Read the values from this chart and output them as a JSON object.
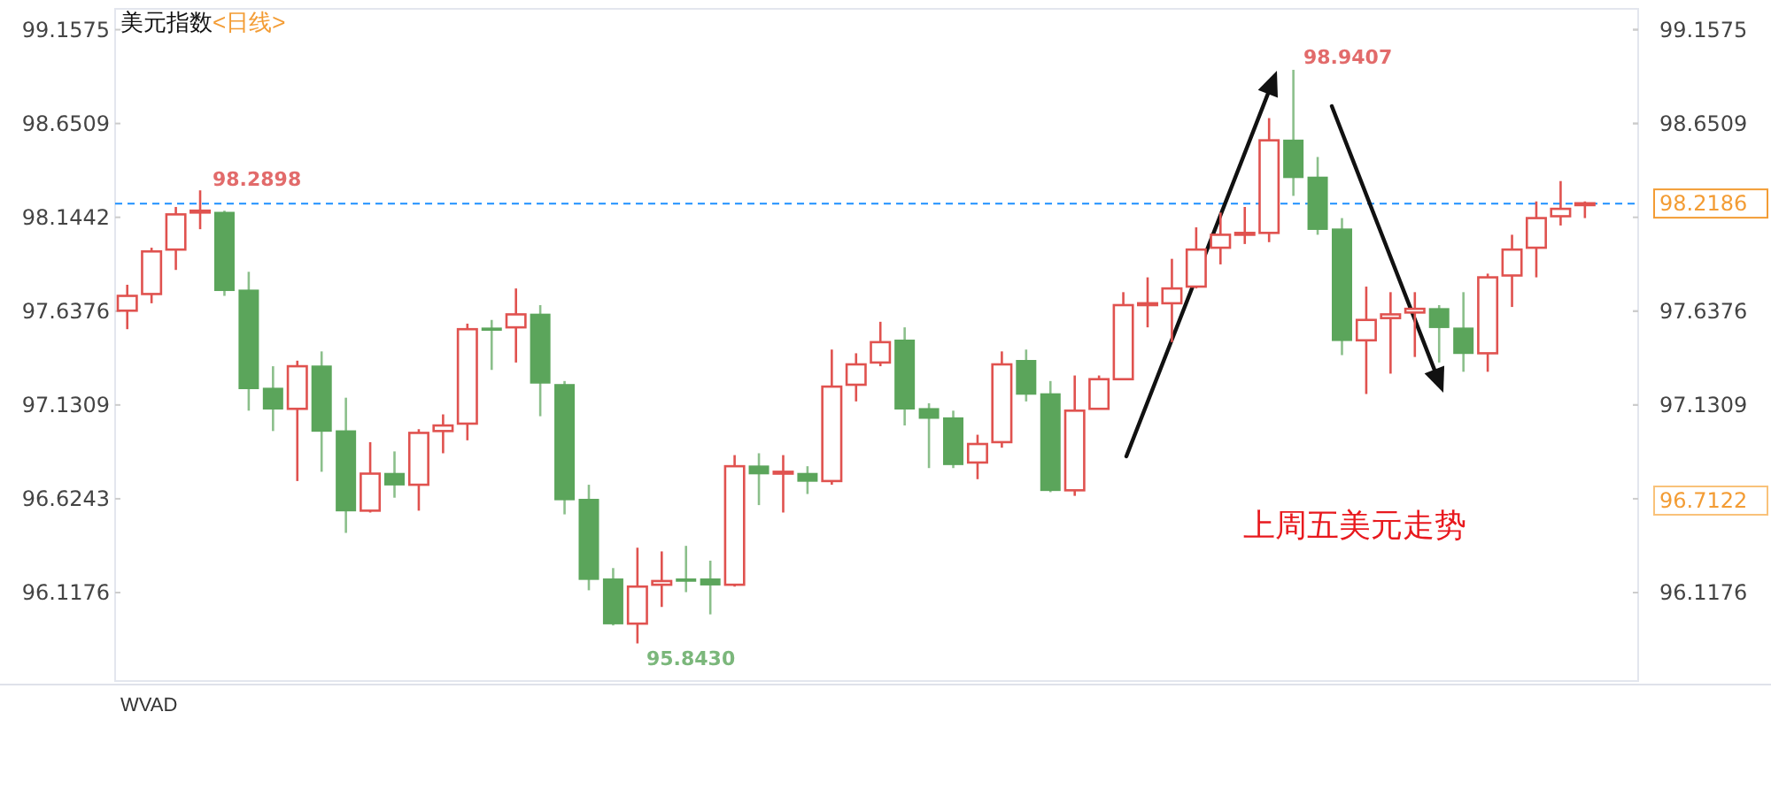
{
  "chart_data": {
    "type": "candlestick",
    "title": "美元指数",
    "subtitle": "<日线>",
    "categories": [
      null,
      null,
      null,
      null,
      null,
      null,
      null,
      null,
      null,
      null,
      null,
      null,
      null,
      null,
      null,
      null,
      null,
      null,
      null,
      null,
      null,
      null,
      null,
      null,
      null,
      null,
      null,
      null,
      null,
      null,
      null,
      null,
      null,
      null,
      null,
      null,
      null,
      null,
      null,
      null,
      null,
      null,
      null,
      null,
      null,
      null,
      null,
      null,
      null,
      null,
      null,
      null,
      null,
      null,
      null,
      null,
      null,
      null,
      null,
      null,
      null
    ],
    "ohlc": [
      [
        97.64,
        97.78,
        97.54,
        97.72
      ],
      [
        97.73,
        97.98,
        97.68,
        97.96
      ],
      [
        97.97,
        98.2,
        97.86,
        98.16
      ],
      [
        98.17,
        98.2898,
        98.08,
        98.18
      ],
      [
        98.17,
        98.18,
        97.72,
        97.75
      ],
      [
        97.75,
        97.85,
        97.1,
        97.22
      ],
      [
        97.22,
        97.34,
        96.99,
        97.11
      ],
      [
        97.11,
        97.37,
        96.72,
        97.34
      ],
      [
        97.34,
        97.42,
        96.77,
        96.99
      ],
      [
        96.99,
        97.17,
        96.44,
        96.56
      ],
      [
        96.56,
        96.93,
        96.55,
        96.76
      ],
      [
        96.76,
        96.88,
        96.63,
        96.7
      ],
      [
        96.7,
        97.0,
        96.56,
        96.98
      ],
      [
        96.99,
        97.08,
        96.87,
        97.02
      ],
      [
        97.03,
        97.57,
        96.94,
        97.54
      ],
      [
        97.545,
        97.59,
        97.32,
        97.54
      ],
      [
        97.55,
        97.76,
        97.36,
        97.62
      ],
      [
        97.62,
        97.67,
        97.07,
        97.25
      ],
      [
        97.24,
        97.26,
        96.54,
        96.62
      ],
      [
        96.62,
        96.7,
        96.13,
        96.19
      ],
      [
        96.19,
        96.25,
        95.94,
        95.95
      ],
      [
        95.95,
        96.36,
        95.843,
        96.15
      ],
      [
        96.16,
        96.34,
        96.04,
        96.18
      ],
      [
        96.19,
        96.37,
        96.12,
        96.18
      ],
      [
        96.19,
        96.29,
        96.0,
        96.16
      ],
      [
        96.16,
        96.86,
        96.15,
        96.8
      ],
      [
        96.8,
        96.87,
        96.59,
        96.76
      ],
      [
        96.76,
        96.86,
        96.55,
        96.77
      ],
      [
        96.76,
        96.8,
        96.65,
        96.72
      ],
      [
        96.72,
        97.43,
        96.7,
        97.23
      ],
      [
        97.24,
        97.41,
        97.15,
        97.35
      ],
      [
        97.36,
        97.58,
        97.34,
        97.47
      ],
      [
        97.48,
        97.55,
        97.02,
        97.11
      ],
      [
        97.11,
        97.14,
        96.79,
        97.06
      ],
      [
        97.06,
        97.1,
        96.79,
        96.81
      ],
      [
        96.82,
        96.97,
        96.73,
        96.92
      ],
      [
        96.93,
        97.42,
        96.9,
        97.35
      ],
      [
        97.37,
        97.43,
        97.15,
        97.19
      ],
      [
        97.19,
        97.26,
        96.66,
        96.67
      ],
      [
        96.67,
        97.29,
        96.64,
        97.1
      ],
      [
        97.11,
        97.29,
        97.11,
        97.27
      ],
      [
        97.27,
        97.74,
        97.27,
        97.67
      ],
      [
        97.67,
        97.82,
        97.55,
        97.68
      ],
      [
        97.68,
        97.92,
        97.47,
        97.76
      ],
      [
        97.77,
        98.09,
        97.76,
        97.97
      ],
      [
        97.98,
        98.17,
        97.89,
        98.05
      ],
      [
        98.05,
        98.2,
        98.0,
        98.06
      ],
      [
        98.06,
        98.68,
        98.01,
        98.56
      ],
      [
        98.56,
        98.9407,
        98.26,
        98.36
      ],
      [
        98.36,
        98.47,
        98.05,
        98.08
      ],
      [
        98.08,
        98.14,
        97.4,
        97.48
      ],
      [
        97.48,
        97.77,
        97.19,
        97.59
      ],
      [
        97.6,
        97.74,
        97.3,
        97.62
      ],
      [
        97.63,
        97.74,
        97.39,
        97.65
      ],
      [
        97.65,
        97.67,
        97.36,
        97.55
      ],
      [
        97.545,
        97.74,
        97.31,
        97.41
      ],
      [
        97.41,
        97.84,
        97.31,
        97.82
      ],
      [
        97.83,
        98.05,
        97.66,
        97.97
      ],
      [
        97.98,
        98.23,
        97.82,
        98.14
      ],
      [
        98.15,
        98.34,
        98.1,
        98.19
      ],
      [
        98.21,
        98.23,
        98.14,
        98.22
      ]
    ],
    "ylim": [
      95.64,
      99.27
    ],
    "yticks": [
      96.1176,
      96.6243,
      97.1309,
      97.6376,
      98.1442,
      98.6509,
      99.1575
    ],
    "grid": false,
    "ref_lines": [
      {
        "axis": "y",
        "value": 98.2186,
        "label": "98.2186",
        "color": "#1e90ff",
        "line_style": "dashed"
      }
    ],
    "y2lim": [
      95.64,
      99.27
    ],
    "y2ticks": [
      96.1176,
      97.1309,
      97.6376,
      98.6509,
      99.1575
    ],
    "annotations": [
      "98.2898",
      "95.8430",
      "98.9407",
      "96.7122",
      "上周五美元走势",
      "WVAD"
    ]
  }
}
